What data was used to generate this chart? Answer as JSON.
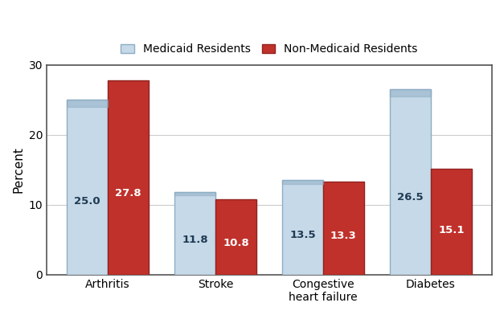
{
  "categories": [
    "Arthritis",
    "Stroke",
    "Congestive\nheart failure",
    "Diabetes"
  ],
  "medicaid_values": [
    25.0,
    11.8,
    13.5,
    26.5
  ],
  "non_medicaid_values": [
    27.8,
    10.8,
    13.3,
    15.1
  ],
  "medicaid_color": "#c5d9e8",
  "medicaid_edge_color": "#8eadc4",
  "non_medicaid_color": "#c0312b",
  "non_medicaid_edge_color": "#922320",
  "medicaid_label_color": "#1f3a52",
  "non_medicaid_label_color": "white",
  "ylabel": "Percent",
  "ylim": [
    0,
    30
  ],
  "yticks": [
    0,
    10,
    20,
    30
  ],
  "legend_medicaid": "Medicaid Residents",
  "legend_non_medicaid": "Non-Medicaid Residents",
  "bar_width": 0.38,
  "value_fontsize": 9.5,
  "axis_label_fontsize": 11,
  "tick_fontsize": 10,
  "legend_fontsize": 10,
  "grid_color": "#cccccc",
  "spine_color": "#555555"
}
